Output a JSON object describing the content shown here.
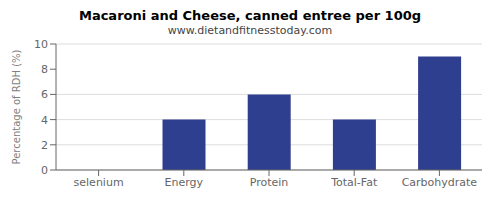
{
  "chart_data": {
    "type": "bar",
    "title": "Macaroni and Cheese, canned entree per 100g",
    "subtitle": "www.dietandfitnesstoday.com",
    "categories": [
      "selenium",
      "Energy",
      "Protein",
      "Total-Fat",
      "Carbohydrate"
    ],
    "values": [
      0,
      4,
      6,
      4,
      9
    ],
    "color": "#2e3f8f",
    "ylabel": "Percentage of RDH (%)",
    "ylim": [
      0,
      10
    ],
    "yticks": [
      0,
      2,
      4,
      6,
      8,
      10
    ],
    "grid": true
  }
}
